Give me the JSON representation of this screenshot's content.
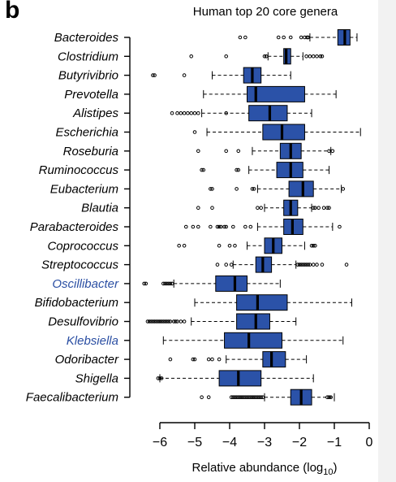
{
  "panel_label": "b",
  "chart_data": {
    "type": "box",
    "title": "Human top 20 core genera",
    "xlabel": "Relative abundance (log",
    "xlabel_sub": "10",
    "xlabel_end": ")",
    "xlim": [
      -6.2,
      0
    ],
    "xticks": [
      -6,
      -5,
      -4,
      -3,
      -2,
      -1,
      0
    ],
    "xtick_labels": [
      "−6",
      "−5",
      "−4",
      "−3",
      "−2",
      "−1",
      "0"
    ],
    "box_color": "#2b52a8",
    "highlight_label_color": "#2b4fa3",
    "genera": [
      {
        "name": "Bacteroides",
        "whisker_low": -1.7,
        "q1": -0.9,
        "median": -0.7,
        "q3": -0.55,
        "whisker_high": -0.35,
        "outliers": [
          -3.7,
          -3.55,
          -2.6,
          -2.45,
          -2.25,
          -1.95,
          -1.85,
          -1.78,
          -1.75
        ],
        "highlight": false
      },
      {
        "name": "Clostridium",
        "whisker_low": -2.9,
        "q1": -2.45,
        "median": -2.38,
        "q3": -2.25,
        "whisker_high": -1.9,
        "outliers": [
          -5.1,
          -4.1,
          -3.0,
          -2.95,
          -1.8,
          -1.7,
          -1.6,
          -1.5,
          -1.4,
          -1.35
        ],
        "highlight": false
      },
      {
        "name": "Butyrivibrio",
        "whisker_low": -4.5,
        "q1": -3.6,
        "median": -3.35,
        "q3": -3.1,
        "whisker_high": -2.25,
        "outliers": [
          -6.2,
          -6.15,
          -5.3
        ],
        "highlight": false
      },
      {
        "name": "Prevotella",
        "whisker_low": -4.75,
        "q1": -3.5,
        "median": -3.25,
        "q3": -1.85,
        "whisker_high": -0.95,
        "outliers": [],
        "highlight": false
      },
      {
        "name": "Alistipes",
        "whisker_low": -4.8,
        "q1": -3.45,
        "median": -2.85,
        "q3": -2.35,
        "whisker_high": -1.65,
        "outliers": [
          -5.65,
          -5.5,
          -5.4,
          -5.3,
          -5.2,
          -5.1,
          -5.0,
          -4.9,
          -4.1
        ],
        "highlight": false
      },
      {
        "name": "Escherichia",
        "whisker_low": -4.65,
        "q1": -3.05,
        "median": -2.5,
        "q3": -1.85,
        "whisker_high": -0.25,
        "outliers": [
          -5.0
        ],
        "highlight": false
      },
      {
        "name": "Roseburia",
        "whisker_low": -3.35,
        "q1": -2.55,
        "median": -2.25,
        "q3": -1.95,
        "whisker_high": -1.1,
        "outliers": [
          -4.9,
          -4.1,
          -3.75,
          -1.15,
          -1.05
        ],
        "highlight": false
      },
      {
        "name": "Ruminococcus",
        "whisker_low": -3.45,
        "q1": -2.65,
        "median": -2.25,
        "q3": -1.9,
        "whisker_high": -1.15,
        "outliers": [
          -4.8,
          -4.75,
          -3.8,
          -3.75
        ],
        "highlight": false
      },
      {
        "name": "Eubacterium",
        "whisker_low": -3.2,
        "q1": -2.3,
        "median": -1.9,
        "q3": -1.6,
        "whisker_high": -0.8,
        "outliers": [
          -4.55,
          -4.5,
          -3.8,
          -3.35,
          -3.3,
          -0.75
        ],
        "highlight": false
      },
      {
        "name": "Blautia",
        "whisker_low": -3.0,
        "q1": -2.45,
        "median": -2.25,
        "q3": -2.05,
        "whisker_high": -1.65,
        "outliers": [
          -4.9,
          -4.5,
          -3.2,
          -3.1,
          -1.6,
          -1.55,
          -1.45,
          -1.3,
          -1.2,
          -1.15
        ],
        "highlight": false
      },
      {
        "name": "Parabacteroides",
        "whisker_low": -3.2,
        "q1": -2.45,
        "median": -2.2,
        "q3": -1.9,
        "whisker_high": -1.05,
        "outliers": [
          -5.25,
          -5.05,
          -4.9,
          -4.55,
          -4.35,
          -4.3,
          -4.25,
          -4.15,
          -4.1,
          -3.9,
          -3.55,
          -3.4,
          -0.85
        ],
        "highlight": false
      },
      {
        "name": "Coprococcus",
        "whisker_low": -3.5,
        "q1": -3.0,
        "median": -2.75,
        "q3": -2.5,
        "whisker_high": -1.85,
        "outliers": [
          -5.45,
          -5.3,
          -4.3,
          -4.0,
          -3.85,
          -1.65,
          -1.6,
          -1.55
        ],
        "highlight": false
      },
      {
        "name": "Streptococcus",
        "whisker_low": -3.9,
        "q1": -3.25,
        "median": -3.05,
        "q3": -2.8,
        "whisker_high": -2.1,
        "outliers": [
          -4.35,
          -4.1,
          -3.95,
          -2.05,
          -2.0,
          -1.95,
          -1.9,
          -1.85,
          -1.8,
          -1.75,
          -1.7,
          -1.6,
          -1.5,
          -1.35,
          -0.65
        ],
        "highlight": false
      },
      {
        "name": "Oscillibacter",
        "whisker_low": -5.6,
        "q1": -4.4,
        "median": -3.85,
        "q3": -3.5,
        "whisker_high": -2.55,
        "outliers": [
          -6.45,
          -6.4,
          -5.9,
          -5.85,
          -5.8,
          -5.75,
          -5.7,
          -5.65
        ],
        "highlight": true
      },
      {
        "name": "Bifidobacterium",
        "whisker_low": -5.0,
        "q1": -3.8,
        "median": -3.2,
        "q3": -2.35,
        "whisker_high": -0.5,
        "outliers": [],
        "highlight": false
      },
      {
        "name": "Desulfovibrio",
        "whisker_low": -5.1,
        "q1": -3.8,
        "median": -3.25,
        "q3": -2.85,
        "whisker_high": -2.1,
        "outliers": [
          -6.35,
          -6.3,
          -6.25,
          -6.2,
          -6.15,
          -6.1,
          -6.05,
          -6.0,
          -5.95,
          -5.9,
          -5.85,
          -5.8,
          -5.75,
          -5.7,
          -5.6,
          -5.55,
          -5.5,
          -5.4,
          -5.3
        ],
        "highlight": false
      },
      {
        "name": "Klebsiella",
        "whisker_low": -5.9,
        "q1": -4.15,
        "median": -3.45,
        "q3": -2.5,
        "whisker_high": -0.75,
        "outliers": [],
        "highlight": true
      },
      {
        "name": "Odoribacter",
        "whisker_low": -4.1,
        "q1": -3.05,
        "median": -2.8,
        "q3": -2.4,
        "whisker_high": -1.8,
        "outliers": [
          -5.7,
          -5.05,
          -5.0,
          -4.6,
          -4.5,
          -4.3
        ],
        "highlight": false
      },
      {
        "name": "Shigella",
        "whisker_low": -6.0,
        "q1": -4.3,
        "median": -3.75,
        "q3": -3.1,
        "whisker_high": -1.6,
        "outliers": [
          -6.05,
          -6.0,
          -5.95
        ],
        "highlight": false
      },
      {
        "name": "Faecalibacterium",
        "whisker_low": -3.0,
        "q1": -2.25,
        "median": -1.95,
        "q3": -1.65,
        "whisker_high": -1.0,
        "outliers": [
          -4.8,
          -4.6,
          -3.95,
          -3.9,
          -3.85,
          -3.8,
          -3.75,
          -3.7,
          -3.65,
          -3.6,
          -3.55,
          -3.5,
          -3.45,
          -3.4,
          -3.35,
          -3.3,
          -3.25,
          -3.2,
          -3.15,
          -3.1,
          -3.05,
          -1.2,
          -1.15,
          -1.1
        ],
        "highlight": false
      }
    ]
  }
}
